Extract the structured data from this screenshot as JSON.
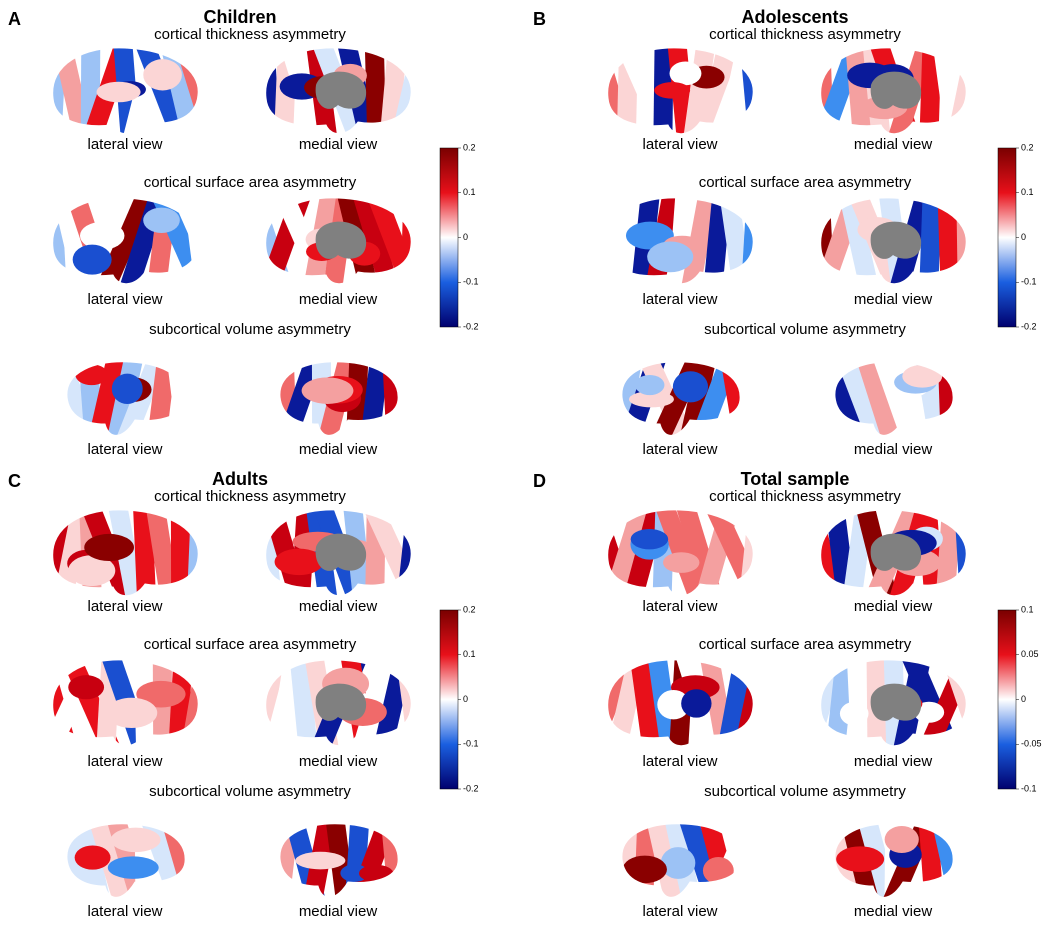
{
  "panels": [
    {
      "letter": "A",
      "title": "Children",
      "sections": [
        {
          "title": "cortical thickness asymmetry",
          "views": [
            "lateral view",
            "medial view"
          ]
        },
        {
          "title": "cortical surface area asymmetry",
          "views": [
            "lateral view",
            "medial view"
          ]
        },
        {
          "title": "subcortical volume asymmetry",
          "views": [
            "lateral view",
            "medial view"
          ]
        }
      ],
      "colorbar": [
        "0.2",
        "0.1",
        "0",
        "-0.1",
        "-0.2"
      ]
    },
    {
      "letter": "B",
      "title": "Adolescents",
      "sections": [
        {
          "title": "cortical thickness asymmetry",
          "views": [
            "lateral view",
            "medial view"
          ]
        },
        {
          "title": "cortical surface area asymmetry",
          "views": [
            "lateral view",
            "medial view"
          ]
        },
        {
          "title": "subcortical volume asymmetry",
          "views": [
            "lateral view",
            "medial view"
          ]
        }
      ],
      "colorbar": [
        "0.2",
        "0.1",
        "0",
        "-0.1",
        "-0.2"
      ]
    },
    {
      "letter": "C",
      "title": "Adults",
      "sections": [
        {
          "title": "cortical thickness asymmetry",
          "views": [
            "lateral view",
            "medial view"
          ]
        },
        {
          "title": "cortical surface area asymmetry",
          "views": [
            "lateral view",
            "medial view"
          ]
        },
        {
          "title": "subcortical volume asymmetry",
          "views": [
            "lateral view",
            "medial view"
          ]
        }
      ],
      "colorbar": [
        "0.2",
        "0.1",
        "0",
        "-0.1",
        "-0.2"
      ]
    },
    {
      "letter": "D",
      "title": "Total sample",
      "sections": [
        {
          "title": "cortical thickness asymmetry",
          "views": [
            "lateral view",
            "medial view"
          ]
        },
        {
          "title": "cortical surface area asymmetry",
          "views": [
            "lateral view",
            "medial view"
          ]
        },
        {
          "title": "subcortical volume asymmetry",
          "views": [
            "lateral view",
            "medial view"
          ]
        }
      ],
      "colorbar": [
        "0.1",
        "0.05",
        "0",
        "-0.05",
        "-0.1"
      ]
    }
  ]
}
